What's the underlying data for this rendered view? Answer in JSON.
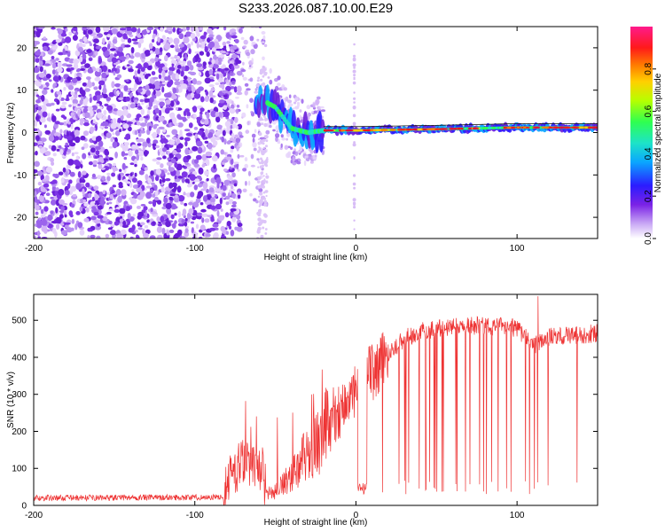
{
  "title": "S233.2026.087.10.00.E29",
  "chart_data": [
    {
      "type": "heatmap",
      "name": "spectrogram",
      "xlabel": "Height of straight line (km)",
      "ylabel": "Frequency (Hz)",
      "xlim": [
        -200,
        150
      ],
      "ylim": [
        -25,
        25
      ],
      "xticks": [
        -200,
        -100,
        0,
        100
      ],
      "yticks": [
        -20,
        -10,
        0,
        10,
        20
      ],
      "ridge_frequency_hz": [
        {
          "x": -60,
          "y": 8
        },
        {
          "x": -50,
          "y": 6
        },
        {
          "x": -40,
          "y": 1
        },
        {
          "x": -30,
          "y": 0
        },
        {
          "x": -20,
          "y": 0.5
        },
        {
          "x": 0,
          "y": 0.5
        },
        {
          "x": 50,
          "y": 0.8
        },
        {
          "x": 100,
          "y": 1.2
        },
        {
          "x": 150,
          "y": 1.2
        }
      ],
      "colorbar": {
        "label": "Normalized spectral amplitude",
        "range": [
          0,
          1
        ],
        "ticks": [
          "0.0",
          "0.2",
          "0.4",
          "0.6",
          "0.8"
        ]
      }
    },
    {
      "type": "line",
      "name": "snr",
      "xlabel": "Height of straight line (km)",
      "ylabel": "SNR (10 * v/v)",
      "xlim": [
        -200,
        150
      ],
      "ylim": [
        0,
        570
      ],
      "xticks": [
        -200,
        -100,
        0,
        100
      ],
      "yticks": [
        0,
        100,
        200,
        300,
        400,
        500
      ],
      "series_color": "#ee3333",
      "baseline": [
        {
          "x": -200,
          "y": 20
        },
        {
          "x": -82,
          "y": 22
        },
        {
          "x": -77,
          "y": 90
        },
        {
          "x": -70,
          "y": 110
        },
        {
          "x": -58,
          "y": 90
        },
        {
          "x": -56,
          "y": 40
        },
        {
          "x": -50,
          "y": 40
        },
        {
          "x": -40,
          "y": 90
        },
        {
          "x": -30,
          "y": 160
        },
        {
          "x": -20,
          "y": 220
        },
        {
          "x": -10,
          "y": 260
        },
        {
          "x": -5,
          "y": 280
        },
        {
          "x": 0,
          "y": 300
        },
        {
          "x": 5,
          "y": 330
        },
        {
          "x": 10,
          "y": 360
        },
        {
          "x": 20,
          "y": 410
        },
        {
          "x": 30,
          "y": 450
        },
        {
          "x": 40,
          "y": 470
        },
        {
          "x": 60,
          "y": 485
        },
        {
          "x": 80,
          "y": 485
        },
        {
          "x": 100,
          "y": 480
        },
        {
          "x": 110,
          "y": 430
        },
        {
          "x": 120,
          "y": 455
        },
        {
          "x": 150,
          "y": 465
        }
      ],
      "peak": {
        "x": 113,
        "y": 565
      }
    }
  ]
}
